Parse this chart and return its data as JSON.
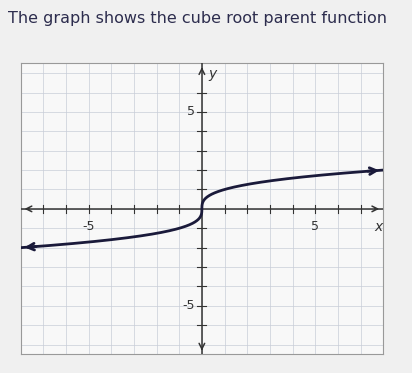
{
  "title": "The graph shows the cube root parent function",
  "title_fontsize": 11.5,
  "title_color": "#2d2d4e",
  "background_color": "#f5f5f5",
  "plot_bg_color": "#f8f8f8",
  "xlim": [
    -8,
    8
  ],
  "ylim": [
    -7.5,
    7.5
  ],
  "grid_color": "#c8cdd8",
  "curve_color": "#1a1a3a",
  "curve_linewidth": 2.0,
  "xlabel": "x",
  "ylabel": "y",
  "axis_label_fontsize": 10,
  "tick_label_fontsize": 9,
  "box_color": "#aaaaaa",
  "axis_line_color": "#333333",
  "y_axis_x_position": -1.5,
  "x_axis_y_position": 0
}
